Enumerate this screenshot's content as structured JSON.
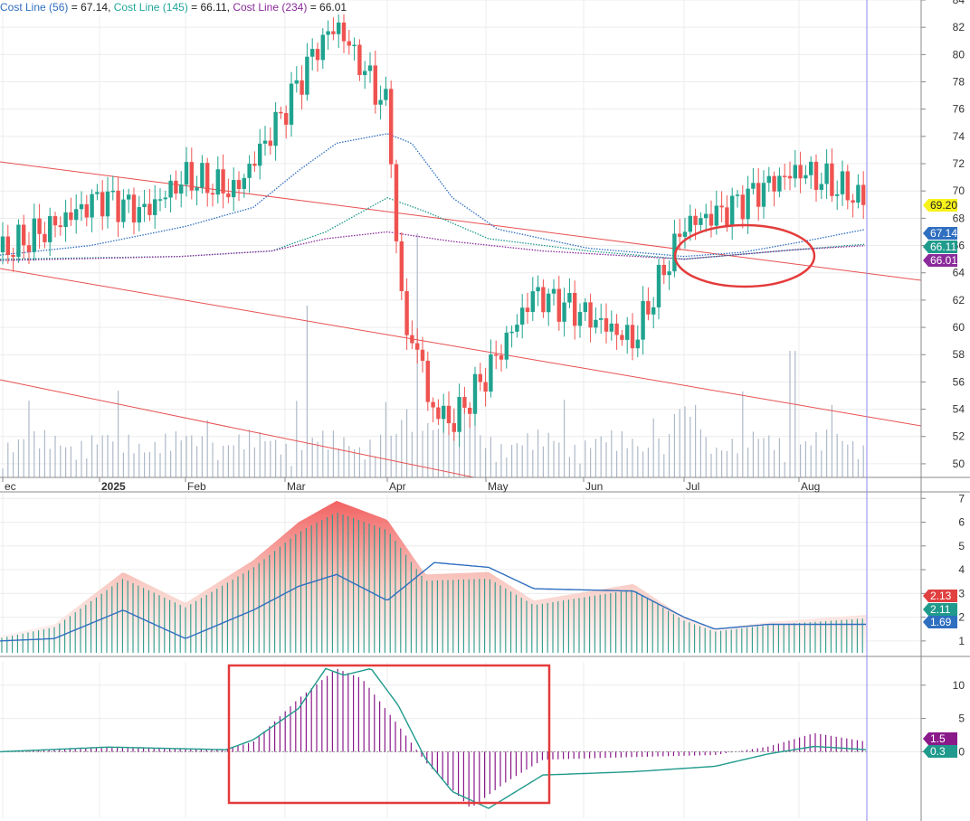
{
  "legend": {
    "items": [
      {
        "label": "Cost Line (56)",
        "sep": " = ",
        "value": "67.14",
        "color": "#2f6fc0"
      },
      {
        "label": "Cost Line (145)",
        "sep": " = ",
        "value": "66.11",
        "color": "#22a79b"
      },
      {
        "label": "Cost Line (234)",
        "sep": " = ",
        "value": "66.01",
        "color": "#8a2a9a"
      }
    ]
  },
  "chart_data": [
    {
      "type": "candlestick",
      "x_tick_labels": [
        "ec",
        "2025",
        "Feb",
        "Mar",
        "Apr",
        "May",
        "Jun",
        "Jul",
        "Aug"
      ],
      "y_ticks": [
        "50",
        "52",
        "54",
        "56",
        "58",
        "60",
        "62",
        "64",
        "66",
        "68",
        "70",
        "72",
        "74",
        "76",
        "78",
        "80",
        "82",
        "84"
      ],
      "ylim": [
        49,
        84
      ],
      "price_badges": [
        {
          "value": "69.20",
          "color": "#f7f21a",
          "text_color": "#222222"
        },
        {
          "value": "67.14",
          "color": "#2f6fc0",
          "text_color": "#ffffff"
        },
        {
          "value": "66.11",
          "color": "#1f9a8c",
          "text_color": "#ffffff"
        },
        {
          "value": "66.01",
          "color": "#8a2a9a",
          "text_color": "#ffffff"
        }
      ],
      "candles_ohlc_summary": "daily candles, Dec 2024 to Aug 2025",
      "key_points": [
        {
          "x": "Dec",
          "close": 66.0
        },
        {
          "x": "2025",
          "close": 69.3
        },
        {
          "x": "Feb",
          "close": 70.6
        },
        {
          "x": "Mar",
          "close": 77.5
        },
        {
          "x": "mid-Mar",
          "close": 82.2
        },
        {
          "x": "Apr",
          "close": 75.8
        },
        {
          "x": "early-Apr",
          "close": 53.5
        },
        {
          "x": "May",
          "close": 56.0
        },
        {
          "x": "Jun",
          "close": 60.5
        },
        {
          "x": "Jul",
          "close": 67.6
        },
        {
          "x": "late-Jul",
          "close": 72.5
        },
        {
          "x": "Aug",
          "close": 69.2
        }
      ],
      "annotations": [
        "red ellipse around cost line convergence (Jul)"
      ]
    },
    {
      "type": "bar+line",
      "y_ticks": [
        "1",
        "2",
        "3",
        "4",
        "5",
        "6",
        "7"
      ],
      "ylim": [
        0.5,
        7.2
      ],
      "badges": [
        {
          "value": "2.13",
          "color": "#e04040"
        },
        {
          "value": "2.11",
          "color": "#1f9a8c"
        },
        {
          "value": "1.69",
          "color": "#2f6fc0"
        }
      ]
    },
    {
      "type": "histogram+line",
      "y_ticks": [
        "10",
        "5",
        "0"
      ],
      "ylim": [
        -10,
        13.5
      ],
      "badges": [
        {
          "value": "1.5",
          "color": "#8a1a8a"
        },
        {
          "value": "0.3",
          "color": "#1f9a8c"
        }
      ],
      "annotations": [
        "red rectangle around Mar-May divergence"
      ]
    }
  ]
}
